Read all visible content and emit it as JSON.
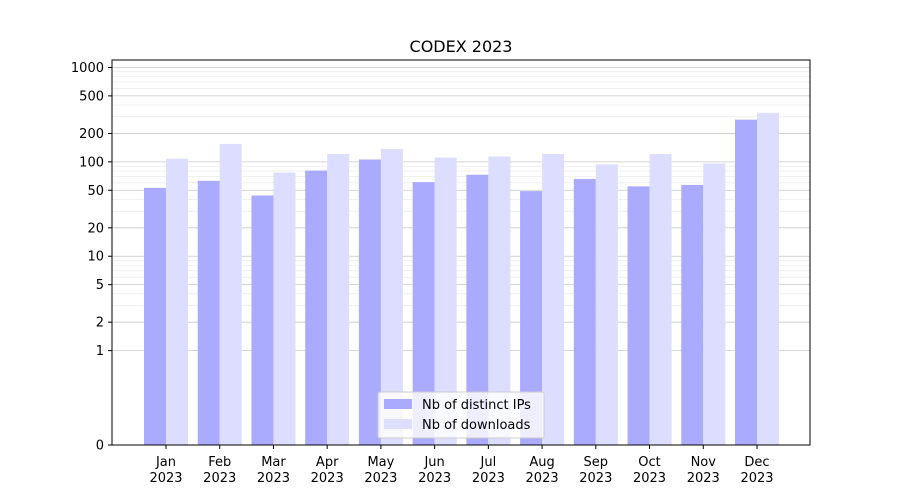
{
  "chart_data": {
    "type": "bar",
    "title": "CODEX 2023",
    "xlabel": "",
    "ylabel": "",
    "y_scale": "symlog",
    "ylim": [
      0,
      1200
    ],
    "y_ticks": [
      0,
      1,
      2,
      5,
      10,
      20,
      50,
      100,
      200,
      500,
      1000
    ],
    "y_tick_labels": [
      "0",
      "1",
      "2",
      "5",
      "10",
      "20",
      "50",
      "100",
      "200",
      "500",
      "1000"
    ],
    "grid": true,
    "legend_position": "bottom-center",
    "categories": [
      "Jan",
      "Feb",
      "Mar",
      "Apr",
      "May",
      "Jun",
      "Jul",
      "Aug",
      "Sep",
      "Oct",
      "Nov",
      "Dec"
    ],
    "category_sublabels": [
      "2023",
      "2023",
      "2023",
      "2023",
      "2023",
      "2023",
      "2023",
      "2023",
      "2023",
      "2023",
      "2023",
      "2023"
    ],
    "series": [
      {
        "name": "Nb of distinct IPs",
        "color": "#aaaaff",
        "values": [
          53,
          63,
          44,
          81,
          106,
          61,
          73,
          49,
          66,
          55,
          57,
          280
        ]
      },
      {
        "name": "Nb of downloads",
        "color": "#ddddff",
        "values": [
          108,
          155,
          77,
          121,
          137,
          111,
          114,
          121,
          94,
          121,
          96,
          330
        ]
      }
    ]
  }
}
